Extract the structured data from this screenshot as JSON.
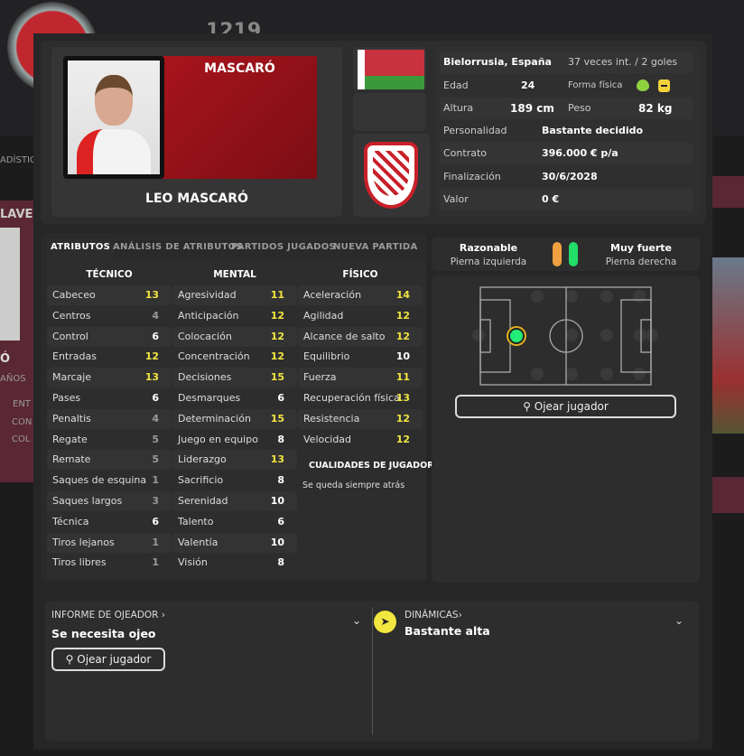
{
  "background": {
    "logo": "UEFA",
    "number": "1219",
    "stats_tab": "ADÍSTIC",
    "key_label": "LAVE",
    "name_fragment": "Ó",
    "years": "AÑOS",
    "rows": [
      "ENT",
      "CON",
      "COL"
    ]
  },
  "player": {
    "surname": "MASCARÓ",
    "full_name": "LEO MASCARÓ"
  },
  "info": {
    "nationality": "Bielorrusia, España",
    "caps": "37 veces int. / 2 goles",
    "age_label": "Edad",
    "age": "24",
    "fitness_label": "Forma física",
    "height_label": "Altura",
    "height": "189 cm",
    "weight_label": "Peso",
    "weight": "82 kg",
    "personality_label": "Personalidad",
    "personality": "Bastante decidido",
    "contract_label": "Contrato",
    "contract": "396.000 € p/a",
    "expiry_label": "Finalización",
    "expiry": "30/6/2028",
    "value_label": "Valor",
    "value": "0 €"
  },
  "tabs": [
    "ATRIBUTOS",
    "ANÁLISIS DE ATRIBUTOS",
    "PARTIDOS JUGADOS",
    "NUEVA PARTIDA"
  ],
  "attributes": {
    "technical": {
      "title": "TÉCNICO",
      "items": [
        [
          "Cabeceo",
          13
        ],
        [
          "Centros",
          4
        ],
        [
          "Control",
          6
        ],
        [
          "Entradas",
          12
        ],
        [
          "Marcaje",
          13
        ],
        [
          "Pases",
          6
        ],
        [
          "Penaltis",
          4
        ],
        [
          "Regate",
          5
        ],
        [
          "Remate",
          5
        ],
        [
          "Saques de esquina",
          1
        ],
        [
          "Saques largos",
          3
        ],
        [
          "Técnica",
          6
        ],
        [
          "Tiros lejanos",
          1
        ],
        [
          "Tiros libres",
          1
        ]
      ]
    },
    "mental": {
      "title": "MENTAL",
      "items": [
        [
          "Agresividad",
          11
        ],
        [
          "Anticipación",
          12
        ],
        [
          "Colocación",
          12
        ],
        [
          "Concentración",
          12
        ],
        [
          "Decisiones",
          15
        ],
        [
          "Desmarques",
          6
        ],
        [
          "Determinación",
          15
        ],
        [
          "Juego en equipo",
          8
        ],
        [
          "Liderazgo",
          13
        ],
        [
          "Sacrificio",
          8
        ],
        [
          "Serenidad",
          10
        ],
        [
          "Talento",
          6
        ],
        [
          "Valentía",
          10
        ],
        [
          "Visión",
          8
        ]
      ]
    },
    "physical": {
      "title": "FÍSICO",
      "items": [
        [
          "Aceleración",
          14
        ],
        [
          "Agilidad",
          12
        ],
        [
          "Alcance de salto",
          12
        ],
        [
          "Equilibrio",
          10
        ],
        [
          "Fuerza",
          11
        ],
        [
          "Recuperación física",
          13
        ],
        [
          "Resistencia",
          12
        ],
        [
          "Velocidad",
          12
        ]
      ]
    }
  },
  "traits": {
    "title": "CUALIDADES DE JUGADOR",
    "items": [
      "Se queda siempre atrás"
    ]
  },
  "feet": {
    "left_rating": "Razonable",
    "left_label": "Pierna izquierda",
    "right_rating": "Muy fuerte",
    "right_label": "Pierna derecha",
    "left_color": "#f0a040",
    "right_color": "#22dd66"
  },
  "position": {
    "scout_button": "Ojear jugador",
    "position_color": "#22ee77"
  },
  "scout_report": {
    "title": "INFORME DE OJEADOR",
    "value": "Se necesita ojeo",
    "button": "Ojear jugador"
  },
  "dynamics": {
    "title": "DINÁMICAS",
    "value": "Bastante alta",
    "icon_color": "#f2e640"
  },
  "colors": {
    "high": "#f2e640",
    "mid": "#ffffff",
    "low": "#999999",
    "banner": "#a8141c"
  }
}
